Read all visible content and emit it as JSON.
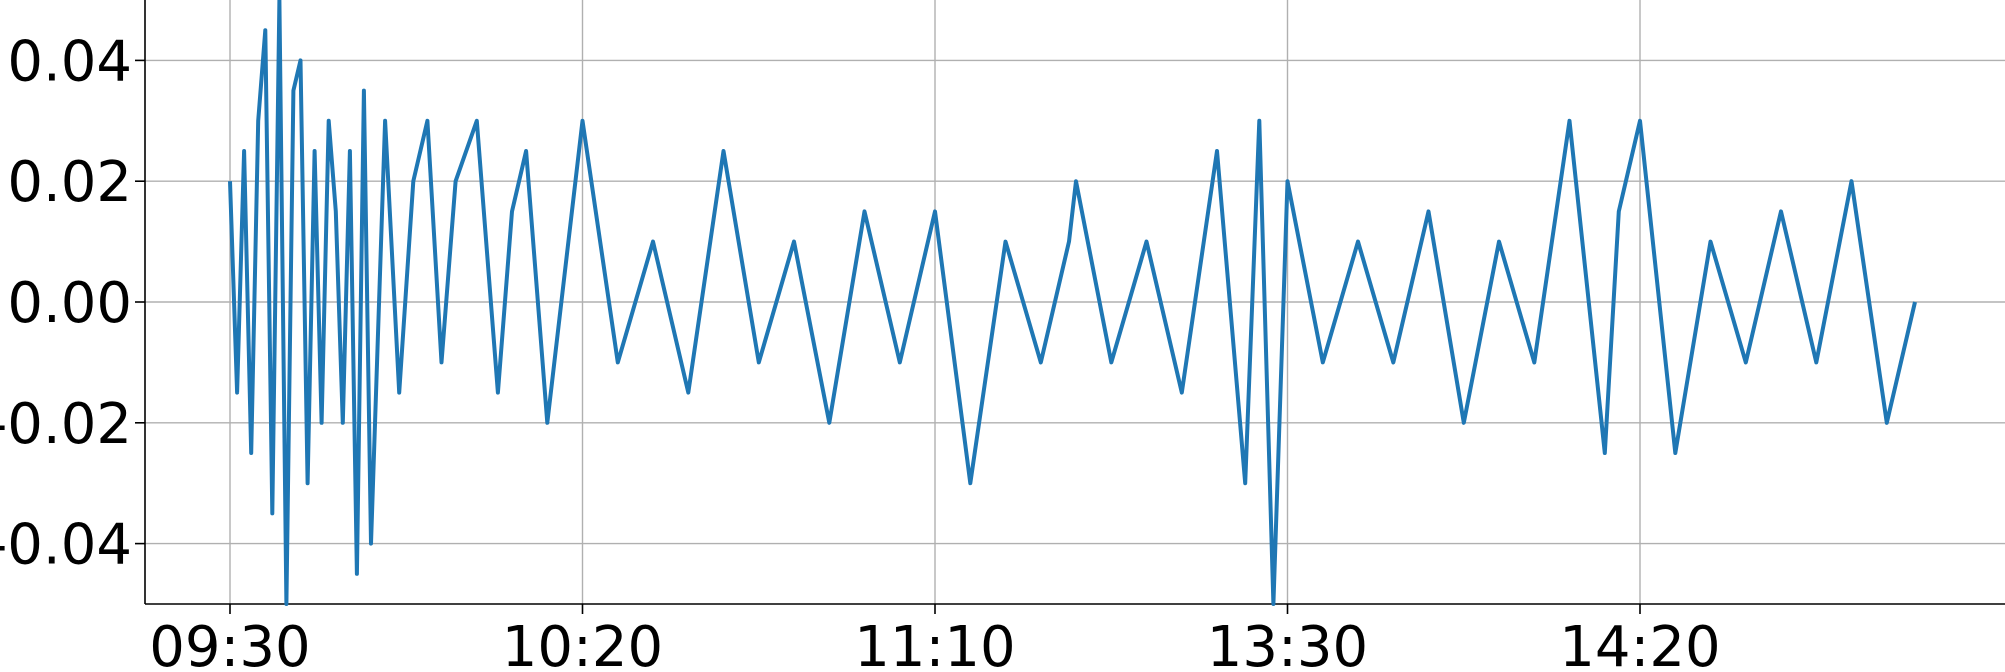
{
  "chart_data": {
    "type": "line",
    "title": "",
    "xlabel": "",
    "ylabel": "",
    "grid": true,
    "legend": "none",
    "line_color": "#1f77b4",
    "x_axis": {
      "kind": "intraday-time",
      "range": [
        "09:30",
        "15:00"
      ],
      "ticks": [
        "09:30",
        "10:20",
        "11:10",
        "13:30",
        "14:20"
      ],
      "lunch_break": [
        "11:30",
        "13:00"
      ]
    },
    "ylim": [
      -0.05,
      0.05
    ],
    "y_ticks": [
      -0.04,
      -0.02,
      0.0,
      0.02,
      0.04
    ],
    "y_tick_labels": [
      "-0.04",
      "-0.02",
      "0.00",
      "0.02",
      "0.04"
    ],
    "series": [
      {
        "label_note": "",
        "x": [
          "09:30",
          "09:31",
          "09:32",
          "09:33",
          "09:34",
          "09:35",
          "09:36",
          "09:37",
          "09:38",
          "09:39",
          "09:40",
          "09:41",
          "09:42",
          "09:43",
          "09:44",
          "09:45",
          "09:46",
          "09:47",
          "09:48",
          "09:49",
          "09:50",
          "09:52",
          "09:54",
          "09:56",
          "09:58",
          "10:00",
          "10:02",
          "10:05",
          "10:08",
          "10:10",
          "10:12",
          "10:15",
          "10:18",
          "10:20",
          "10:25",
          "10:30",
          "10:35",
          "10:40",
          "10:45",
          "10:50",
          "10:55",
          "11:00",
          "11:05",
          "11:10",
          "11:15",
          "11:20",
          "11:25",
          "11:29",
          "13:00",
          "13:05",
          "13:10",
          "13:15",
          "13:20",
          "13:24",
          "13:26",
          "13:28",
          "13:30",
          "13:35",
          "13:40",
          "13:45",
          "13:50",
          "13:55",
          "14:00",
          "14:05",
          "14:10",
          "14:15",
          "14:17",
          "14:20",
          "14:25",
          "14:30",
          "14:35",
          "14:40",
          "14:45",
          "14:50",
          "14:55",
          "14:59"
        ],
        "values": [
          0.02,
          -0.015,
          0.025,
          -0.025,
          0.03,
          0.045,
          -0.035,
          0.05,
          -0.05,
          0.035,
          0.04,
          -0.03,
          0.025,
          -0.02,
          0.03,
          0.015,
          -0.02,
          0.025,
          -0.045,
          0.035,
          -0.04,
          0.03,
          -0.015,
          0.02,
          0.03,
          -0.01,
          0.02,
          0.03,
          -0.015,
          0.015,
          0.025,
          -0.02,
          0.01,
          0.03,
          -0.01,
          0.01,
          -0.015,
          0.025,
          -0.01,
          0.01,
          -0.02,
          0.015,
          -0.01,
          0.015,
          -0.03,
          0.01,
          -0.01,
          0.01,
          0.02,
          -0.01,
          0.01,
          -0.015,
          0.025,
          -0.03,
          0.03,
          -0.05,
          0.02,
          -0.01,
          0.01,
          -0.01,
          0.015,
          -0.02,
          0.01,
          -0.01,
          0.03,
          -0.025,
          0.015,
          0.03,
          -0.025,
          0.01,
          -0.01,
          0.015,
          -0.01,
          0.02,
          -0.02,
          0.0
        ]
      }
    ]
  }
}
